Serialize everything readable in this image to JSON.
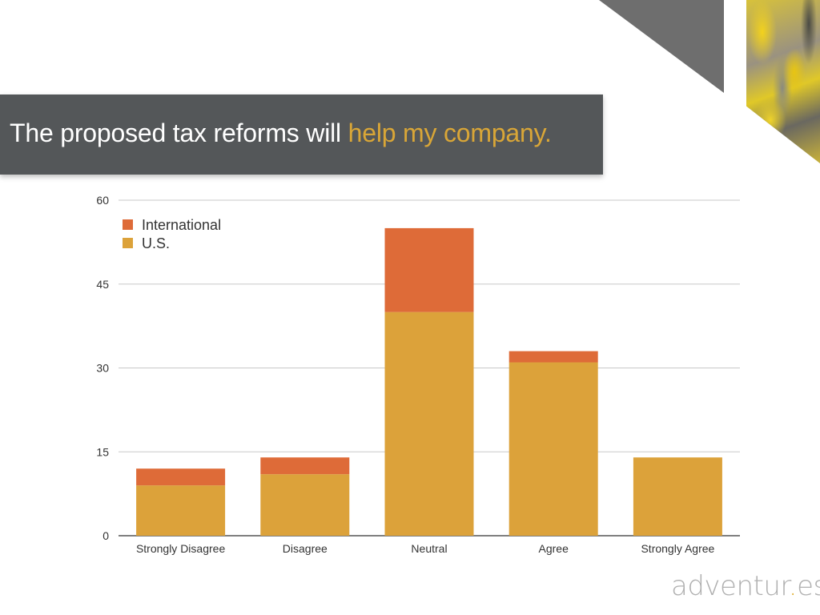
{
  "slide": {
    "title_main": "The proposed tax reforms will ",
    "title_highlight": "help my company.",
    "logo_part1": "adventur",
    "logo_dot": ".",
    "logo_part2": "es"
  },
  "colors": {
    "us": "#dca23a",
    "international": "#de6b38",
    "banner": "#545759",
    "highlight": "#d9a637"
  },
  "chart_data": {
    "type": "bar",
    "stacked": true,
    "categories": [
      "Strongly Disagree",
      "Disagree",
      "Neutral",
      "Agree",
      "Strongly Agree"
    ],
    "series": [
      {
        "name": "U.S.",
        "values": [
          9,
          11,
          40,
          31,
          14
        ]
      },
      {
        "name": "International",
        "values": [
          3,
          3,
          15,
          2,
          0
        ]
      }
    ],
    "yticks": [
      0,
      15,
      30,
      45,
      60
    ],
    "ylim": [
      0,
      60
    ],
    "grid": true,
    "legend": [
      "International",
      "U.S."
    ],
    "legend_position": "top-left"
  }
}
